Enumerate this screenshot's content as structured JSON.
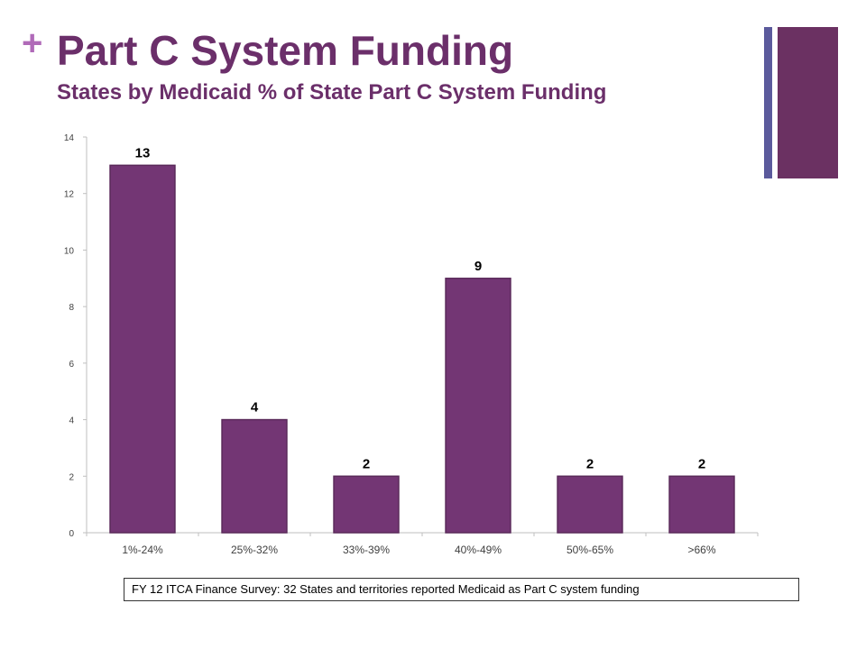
{
  "header": {
    "plus": "+",
    "title": "Part C System Funding",
    "subtitle": "States by Medicaid % of State Part C System Funding"
  },
  "colors": {
    "bar": "#733674",
    "bar_edge": "#5a2a5a",
    "accent_blue": "#5b5a9c",
    "accent_purple": "#6b3162",
    "title": "#6b2f6a"
  },
  "chart_data": {
    "type": "bar",
    "title": "",
    "xlabel": "",
    "ylabel": "",
    "categories": [
      "1%-24%",
      "25%-32%",
      "33%-39%",
      "40%-49%",
      "50%-65%",
      ">66%"
    ],
    "values": [
      13,
      4,
      2,
      9,
      2,
      2
    ],
    "data_labels": [
      "13",
      "4",
      "2",
      "9",
      "2",
      "2"
    ],
    "ylim": [
      0,
      14
    ],
    "yticks": [
      0,
      2,
      4,
      6,
      8,
      10,
      12,
      14
    ],
    "grid": false,
    "legend": "none"
  },
  "footnote": "FY 12 ITCA Finance Survey: 32 States and territories reported  Medicaid  as Part C system funding"
}
